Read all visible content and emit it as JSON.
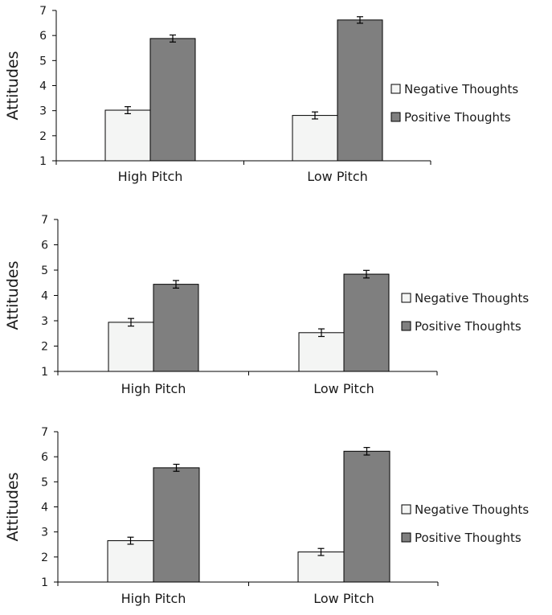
{
  "legend_position": "right",
  "colors": {
    "negative": "#f4f5f4",
    "positive": "#7f7f7f",
    "stroke": "#000000",
    "text": "#1a1a1a"
  },
  "chart_data": [
    {
      "type": "bar",
      "categories": [
        "High Pitch",
        "Low Pitch"
      ],
      "series": [
        {
          "name": "Negative Thoughts",
          "values": [
            3.02,
            2.81
          ],
          "errors": [
            0.14,
            0.14
          ]
        },
        {
          "name": "Positive Thoughts",
          "values": [
            5.88,
            6.62
          ],
          "errors": [
            0.14,
            0.13
          ]
        }
      ],
      "title": "",
      "xlabel": "",
      "ylabel": "Attitudes",
      "ylim": [
        1,
        7
      ],
      "yticks": [
        1,
        2,
        3,
        4,
        5,
        6,
        7
      ],
      "grid": false,
      "legend": "right"
    },
    {
      "type": "bar",
      "categories": [
        "High Pitch",
        "Low Pitch"
      ],
      "series": [
        {
          "name": "Negative Thoughts",
          "values": [
            2.94,
            2.53
          ],
          "errors": [
            0.15,
            0.15
          ]
        },
        {
          "name": "Positive Thoughts",
          "values": [
            4.44,
            4.84
          ],
          "errors": [
            0.15,
            0.15
          ]
        }
      ],
      "title": "",
      "xlabel": "",
      "ylabel": "Attitudes",
      "ylim": [
        1,
        7
      ],
      "yticks": [
        1,
        2,
        3,
        4,
        5,
        6,
        7
      ],
      "grid": false,
      "legend": "right"
    },
    {
      "type": "bar",
      "categories": [
        "High Pitch",
        "Low Pitch"
      ],
      "series": [
        {
          "name": "Negative Thoughts",
          "values": [
            2.65,
            2.2
          ],
          "errors": [
            0.14,
            0.14
          ]
        },
        {
          "name": "Positive Thoughts",
          "values": [
            5.56,
            6.22
          ],
          "errors": [
            0.14,
            0.15
          ]
        }
      ],
      "title": "",
      "xlabel": "",
      "ylabel": "Attitudes",
      "ylim": [
        1,
        7
      ],
      "yticks": [
        1,
        2,
        3,
        4,
        5,
        6,
        7
      ],
      "grid": false,
      "legend": "right"
    }
  ]
}
